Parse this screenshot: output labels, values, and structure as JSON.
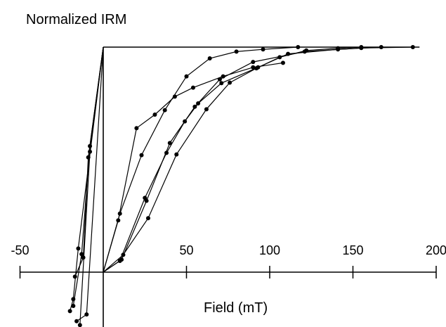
{
  "chart_data": {
    "type": "line",
    "title": "",
    "xlabel": "Field (mT)",
    "ylabel": "Normalized IRM",
    "xlim": [
      -50,
      200
    ],
    "ylim": [
      -0.27,
      1.0
    ],
    "grid": false,
    "legend": "none",
    "xticks": [
      {
        "value": -50,
        "label": "-50"
      },
      {
        "value": 50,
        "label": "50"
      },
      {
        "value": 100,
        "label": "100"
      },
      {
        "value": 150,
        "label": "150"
      },
      {
        "value": 200,
        "label": "200"
      }
    ],
    "colors": {
      "line": "#000000",
      "marker": "#000000",
      "axis": "#000000"
    },
    "series": [
      {
        "x": [
          -20,
          -18,
          -15,
          0,
          9,
          20,
          31,
          43,
          54,
          72,
          90,
          108
        ],
        "y": [
          -0.173,
          -0.12,
          0.105,
          1.0,
          0.23,
          0.64,
          0.7,
          0.78,
          0.82,
          0.87,
          0.91,
          0.93
        ]
      },
      {
        "x": [
          -18,
          -13,
          -8,
          0,
          10,
          23,
          37,
          50,
          64,
          80,
          96,
          117
        ],
        "y": [
          -0.15,
          0.08,
          0.56,
          1.0,
          0.26,
          0.52,
          0.72,
          0.87,
          0.95,
          0.98,
          0.99,
          1.0
        ]
      },
      {
        "x": [
          -16,
          -10,
          0,
          11,
          26,
          40,
          55,
          70,
          90,
          121,
          155,
          186
        ],
        "y": [
          -0.218,
          -0.188,
          1.0,
          0.056,
          0.317,
          0.574,
          0.735,
          0.857,
          0.934,
          0.98,
          0.996,
          1.0
        ]
      },
      {
        "x": [
          -17,
          -12,
          -9,
          0,
          10,
          25,
          38,
          49,
          57,
          71,
          93,
          111,
          141,
          167
        ],
        "y": [
          -0.02,
          0.065,
          0.51,
          1.0,
          0.05,
          0.33,
          0.53,
          0.67,
          0.75,
          0.84,
          0.91,
          0.97,
          0.99,
          1.0
        ]
      },
      {
        "x": [
          -14,
          -8,
          0,
          12,
          27,
          44,
          62,
          76,
          92,
          106,
          122,
          141,
          155
        ],
        "y": [
          -0.235,
          0.535,
          1.0,
          0.077,
          0.24,
          0.523,
          0.724,
          0.842,
          0.906,
          0.955,
          0.985,
          0.995,
          1.0
        ]
      }
    ]
  }
}
